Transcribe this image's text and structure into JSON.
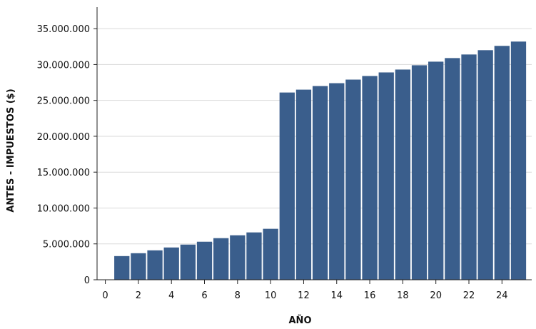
{
  "chart_data": {
    "type": "bar",
    "title": "",
    "xlabel": "AÑO",
    "ylabel": "ANTES - IMPUESTOS ($)",
    "x": [
      1,
      2,
      3,
      4,
      5,
      6,
      7,
      8,
      9,
      10,
      11,
      12,
      13,
      14,
      15,
      16,
      17,
      18,
      19,
      20,
      21,
      22,
      23,
      24,
      25
    ],
    "values": [
      3300000,
      3700000,
      4100000,
      4500000,
      4900000,
      5300000,
      5800000,
      6200000,
      6600000,
      7100000,
      26100000,
      26500000,
      27000000,
      27400000,
      27900000,
      28400000,
      28900000,
      29300000,
      29900000,
      30400000,
      30900000,
      31400000,
      32000000,
      32600000,
      33200000
    ],
    "xlim": [
      -0.5,
      25.8
    ],
    "ylim": [
      0,
      38000000
    ],
    "xticks": [
      0,
      2,
      4,
      6,
      8,
      10,
      12,
      14,
      16,
      18,
      20,
      22,
      24
    ],
    "xtick_labels": [
      "0",
      "2",
      "4",
      "6",
      "8",
      "10",
      "12",
      "14",
      "16",
      "18",
      "20",
      "22",
      "24"
    ],
    "yticks": [
      0,
      5000000,
      10000000,
      15000000,
      20000000,
      25000000,
      30000000,
      35000000
    ],
    "ytick_labels": [
      "0",
      "5.000.000",
      "10.000.000",
      "15.000.000",
      "20.000.000",
      "25.000.000",
      "30.000.000",
      "35.000.000"
    ],
    "grid": true,
    "bar_color": "#3a5e8c",
    "grid_color": "#d9d9d9"
  }
}
